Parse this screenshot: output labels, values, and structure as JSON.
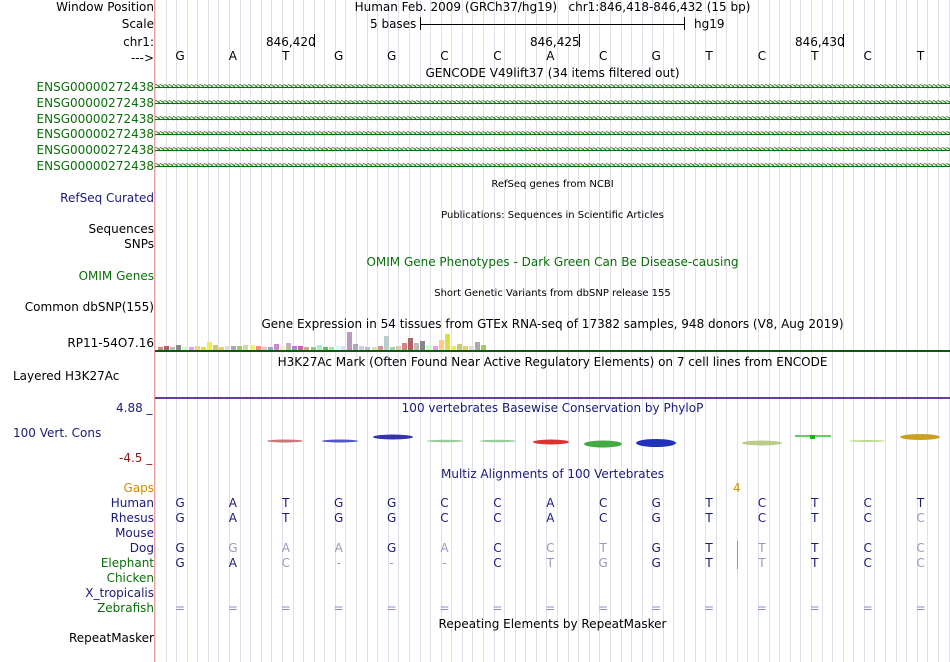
{
  "header": {
    "window_position_label": "Window Position",
    "scale_label": "Scale",
    "chrom_label": "chr1:",
    "arrow_label": "--->",
    "assembly_title": "Human Feb. 2009 (GRCh37/hg19)",
    "position": "chr1:846,418-846,432 (15 bp)",
    "scale_text": "5 bases",
    "scale_db": "hg19",
    "ruler_ticks": [
      "846,420",
      "846,425",
      "846,430"
    ]
  },
  "sequence": [
    "G",
    "A",
    "T",
    "G",
    "G",
    "C",
    "C",
    "A",
    "C",
    "G",
    "T",
    "C",
    "T",
    "C",
    "T"
  ],
  "gencode": {
    "title": "GENCODE V49lift37 (34 items filtered out)",
    "rows": [
      "ENSG00000272438",
      "ENSG00000272438",
      "ENSG00000272438",
      "ENSG00000272438",
      "ENSG00000272438",
      "ENSG00000272438"
    ],
    "color": "#0a6e0a"
  },
  "tracks": {
    "refseq": {
      "label": "RefSeq Curated",
      "center": "RefSeq genes from NCBI"
    },
    "publications": {
      "center": "Publications: Sequences in Scientific Articles"
    },
    "sequences_label": "Sequences",
    "snps_label": "SNPs",
    "omim": {
      "label": "OMIM Genes",
      "center": "OMIM Gene Phenotypes - Dark Green Can Be Disease-causing"
    },
    "dbsnp": {
      "label": "Common dbSNP(155)",
      "center": "Short Genetic Variants from dbSNP release 155"
    },
    "gtex": {
      "label": "RP11-54O7.16",
      "center": "Gene Expression in 54 tissues from GTEx RNA-seq of 17382 samples, 948 donors (V8, Aug 2019)"
    },
    "h3k27ac": {
      "label": "Layered H3K27Ac",
      "center": "H3K27Ac Mark (Often Found Near Active Regulatory Elements) on 7 cell lines from ENCODE"
    },
    "cons": {
      "label": "100 Vert. Cons",
      "max": "4.88 _",
      "min": "-4.5 _",
      "center": "100 vertebrates Basewise Conservation by PhyloP"
    },
    "multiz": {
      "center": "Multiz Alignments of 100 Vertebrates",
      "gaps_label": "Gaps",
      "gap_count": "4"
    },
    "repeatmasker": {
      "label": "RepeatMasker",
      "center": "Repeating Elements by RepeatMasker"
    }
  },
  "alignment": [
    {
      "species": "Human",
      "bases": [
        "G",
        "A",
        "T",
        "G",
        "G",
        "C",
        "C",
        "A",
        "C",
        "G",
        "T",
        "C",
        "T",
        "C",
        "T"
      ]
    },
    {
      "species": "Rhesus",
      "bases": [
        "G",
        "A",
        "T",
        "G",
        "G",
        "C",
        "C",
        "A",
        "C",
        "G",
        "T",
        "C",
        "T",
        "C",
        "C"
      ]
    },
    {
      "species": "Mouse",
      "bases": []
    },
    {
      "species": "Dog",
      "bases": [
        "G",
        "G",
        "A",
        "A",
        "G",
        "A",
        "C",
        "C",
        "T",
        "G",
        "T",
        "T",
        "T",
        "C",
        "C"
      ]
    },
    {
      "species": "Elephant",
      "bases": [
        "G",
        "A",
        "C",
        "-",
        "-",
        "-",
        "C",
        "T",
        "G",
        "G",
        "T",
        "T",
        "T",
        "C",
        "C"
      ]
    },
    {
      "species": "Chicken",
      "bases": []
    },
    {
      "species": "X_tropicalis",
      "bases": []
    },
    {
      "species": "Zebrafish",
      "bases": [
        "=",
        "=",
        "=",
        "=",
        "=",
        "=",
        "=",
        "=",
        "=",
        "=",
        "=",
        "=",
        "=",
        "=",
        "="
      ]
    }
  ],
  "colors": {
    "navy_label": "#1a1a7a",
    "green_label": "#0a6e0a",
    "omim_green": "#0a6e0a",
    "gaps_orange": "#d98a00",
    "h3k_line": "#6a3d9a",
    "gtex_line": "#0a5a0a"
  }
}
